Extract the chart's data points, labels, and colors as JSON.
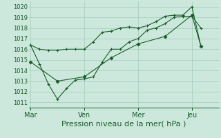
{
  "bg_color": "#cce8dc",
  "grid_color": "#aacfbf",
  "line_color": "#1a5c2a",
  "xlabel": "Pression niveau de la mer( hPa )",
  "ylim": [
    1010.5,
    1020.5
  ],
  "yticks": [
    1011,
    1012,
    1013,
    1014,
    1015,
    1016,
    1017,
    1018,
    1019,
    1020
  ],
  "xtick_labels": [
    "Mar",
    "Ven",
    "Mer",
    "Jeu"
  ],
  "xtick_positions": [
    0,
    3,
    6,
    9
  ],
  "vline_positions": [
    0,
    3,
    6,
    9
  ],
  "xlim": [
    -0.1,
    10.5
  ],
  "series1_x": [
    0.0,
    0.5,
    1.0,
    1.5,
    2.0,
    2.5,
    3.0,
    3.5,
    4.0,
    4.5,
    5.0,
    5.5,
    6.0,
    6.5,
    7.0,
    7.5,
    8.0,
    8.5,
    9.0,
    9.5
  ],
  "series1_y": [
    1016.4,
    1016.0,
    1015.9,
    1015.9,
    1016.0,
    1016.0,
    1016.0,
    1016.7,
    1017.6,
    1017.7,
    1018.0,
    1018.1,
    1018.0,
    1018.2,
    1018.6,
    1019.1,
    1019.2,
    1019.2,
    1020.0,
    1016.3
  ],
  "series2_x": [
    0.0,
    0.5,
    1.0,
    1.5,
    2.0,
    2.5,
    3.0,
    3.5,
    4.0,
    4.5,
    5.0,
    5.5,
    6.0,
    6.5,
    7.0,
    7.5,
    8.0,
    8.5,
    9.0,
    9.5
  ],
  "series2_y": [
    1016.4,
    1014.6,
    1012.7,
    1011.3,
    1012.3,
    1013.1,
    1013.2,
    1013.4,
    1014.8,
    1016.0,
    1016.0,
    1016.7,
    1017.0,
    1017.8,
    1018.0,
    1018.4,
    1019.0,
    1019.1,
    1019.1,
    1018.0
  ],
  "series3_x": [
    0.0,
    1.5,
    3.0,
    4.5,
    6.0,
    7.5,
    9.0,
    9.5
  ],
  "series3_y": [
    1014.8,
    1013.0,
    1013.4,
    1015.2,
    1016.5,
    1017.2,
    1019.2,
    1016.3
  ],
  "xlabel_fontsize": 8,
  "ytick_fontsize": 6,
  "xtick_fontsize": 7
}
